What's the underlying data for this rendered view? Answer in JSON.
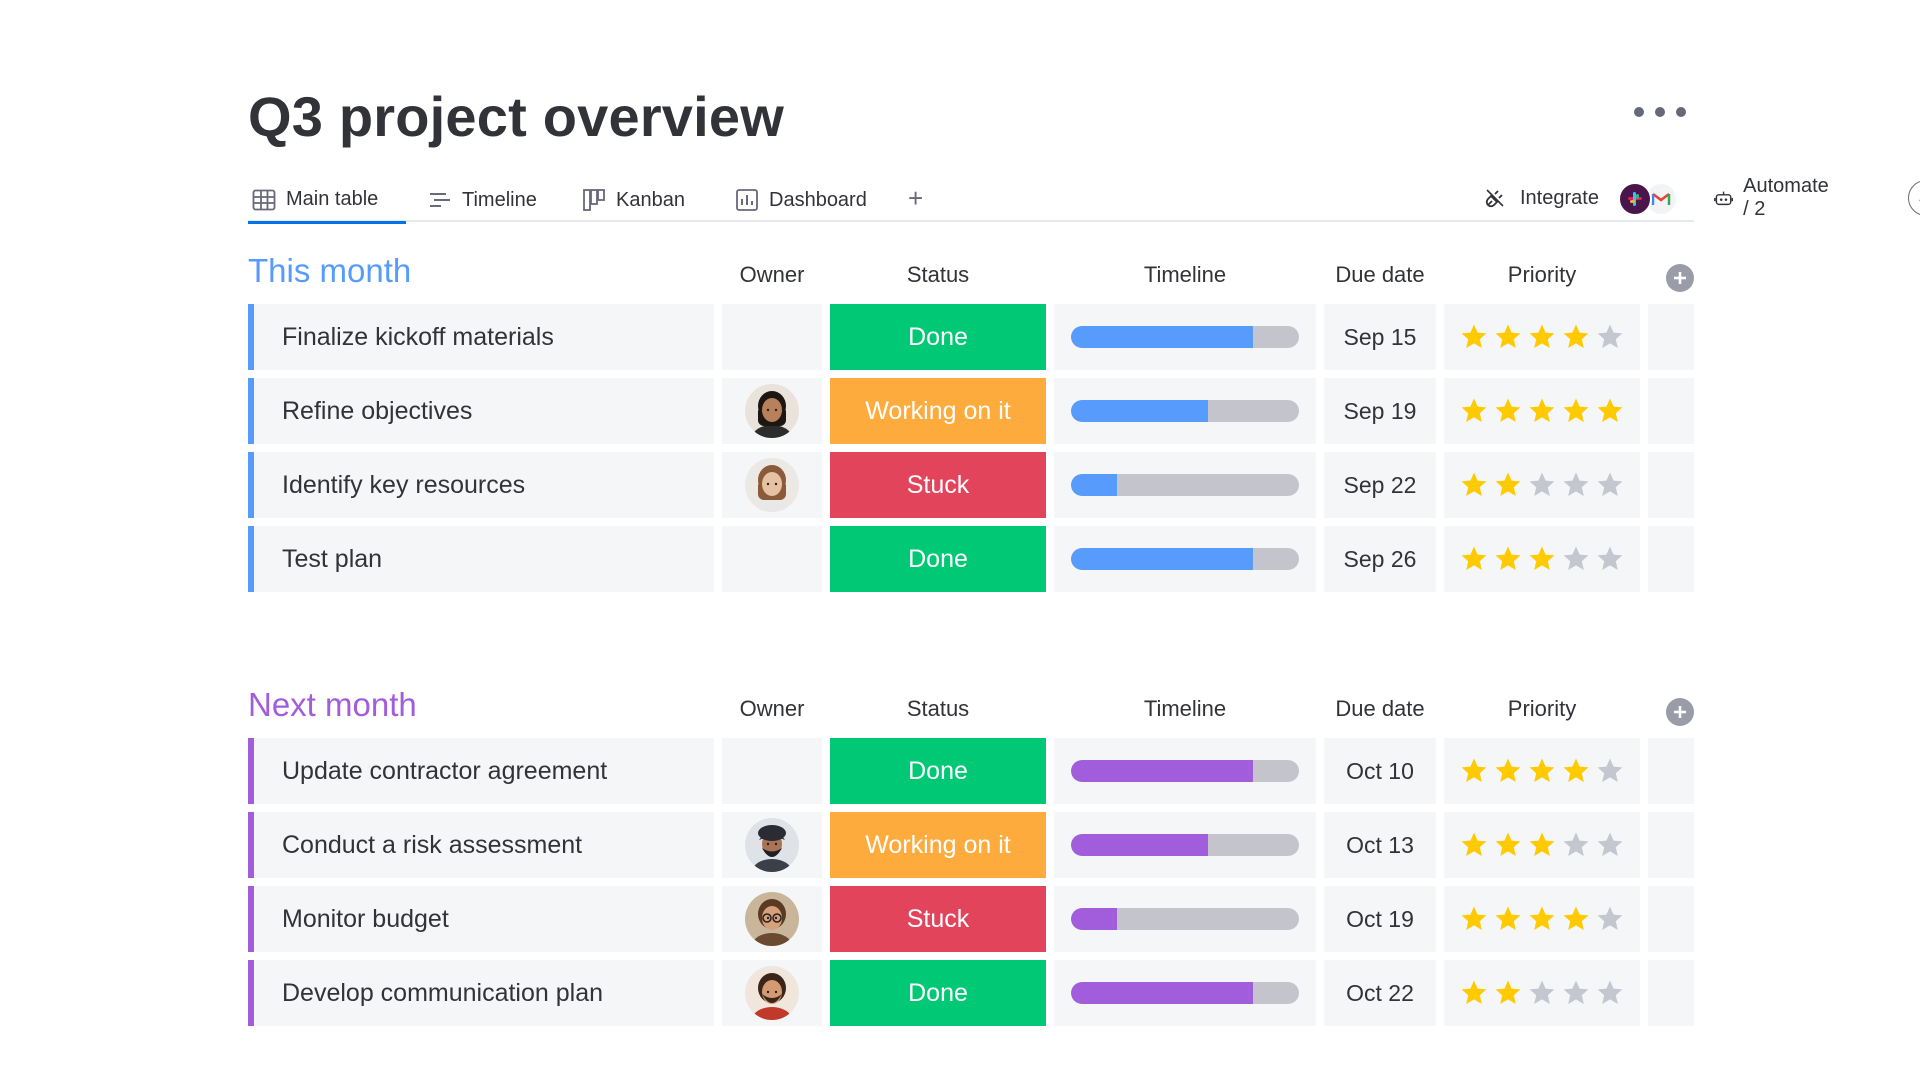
{
  "title": "Q3 project overview",
  "tabs": [
    {
      "label": "Main table",
      "icon": "table-icon",
      "active": true
    },
    {
      "label": "Timeline",
      "icon": "timeline-icon",
      "active": false
    },
    {
      "label": "Kanban",
      "icon": "kanban-icon",
      "active": false
    },
    {
      "label": "Dashboard",
      "icon": "dashboard-icon",
      "active": false
    }
  ],
  "add_tab_label": "+",
  "integrate_label": "Integrate",
  "automate_label": "Automate / 2",
  "columns": {
    "owner": "Owner",
    "status": "Status",
    "timeline": "Timeline",
    "due": "Due date",
    "priority": "Priority"
  },
  "colors": {
    "this_month": "#579bfc",
    "next_month": "#a25ddc",
    "done": "#00c875",
    "working": "#fdab3d",
    "stuck": "#e2445c",
    "star_on": "#ffcb00",
    "star_off": "#c5c7d0",
    "active_tab": "#0073ea"
  },
  "groups": [
    {
      "title": "This month",
      "color": "#579bfc",
      "rows": [
        {
          "name": "Finalize kickoff materials",
          "owner": "",
          "status": "Done",
          "status_color": "#00c875",
          "progress": 0.8,
          "due": "Sep 15",
          "priority": 4
        },
        {
          "name": "Refine objectives",
          "owner": "avatar-woman-dark-hair",
          "status": "Working on it",
          "status_color": "#fdab3d",
          "progress": 0.6,
          "due": "Sep 19",
          "priority": 5
        },
        {
          "name": "Identify key resources",
          "owner": "avatar-woman-light-hair",
          "status": "Stuck",
          "status_color": "#e2445c",
          "progress": 0.2,
          "due": "Sep 22",
          "priority": 2
        },
        {
          "name": "Test plan",
          "owner": "",
          "status": "Done",
          "status_color": "#00c875",
          "progress": 0.8,
          "due": "Sep 26",
          "priority": 3
        }
      ]
    },
    {
      "title": "Next month",
      "color": "#a25ddc",
      "rows": [
        {
          "name": "Update contractor agreement",
          "owner": "",
          "status": "Done",
          "status_color": "#00c875",
          "progress": 0.8,
          "due": "Oct 10",
          "priority": 4
        },
        {
          "name": "Conduct a risk assessment",
          "owner": "avatar-man-turban",
          "status": "Working on it",
          "status_color": "#fdab3d",
          "progress": 0.6,
          "due": "Oct 13",
          "priority": 3
        },
        {
          "name": "Monitor budget",
          "owner": "avatar-woman-glasses",
          "status": "Stuck",
          "status_color": "#e2445c",
          "progress": 0.2,
          "due": "Oct 19",
          "priority": 4
        },
        {
          "name": "Develop communication plan",
          "owner": "avatar-man-beard",
          "status": "Done",
          "status_color": "#00c875",
          "progress": 0.8,
          "due": "Oct 22",
          "priority": 2
        }
      ]
    }
  ]
}
